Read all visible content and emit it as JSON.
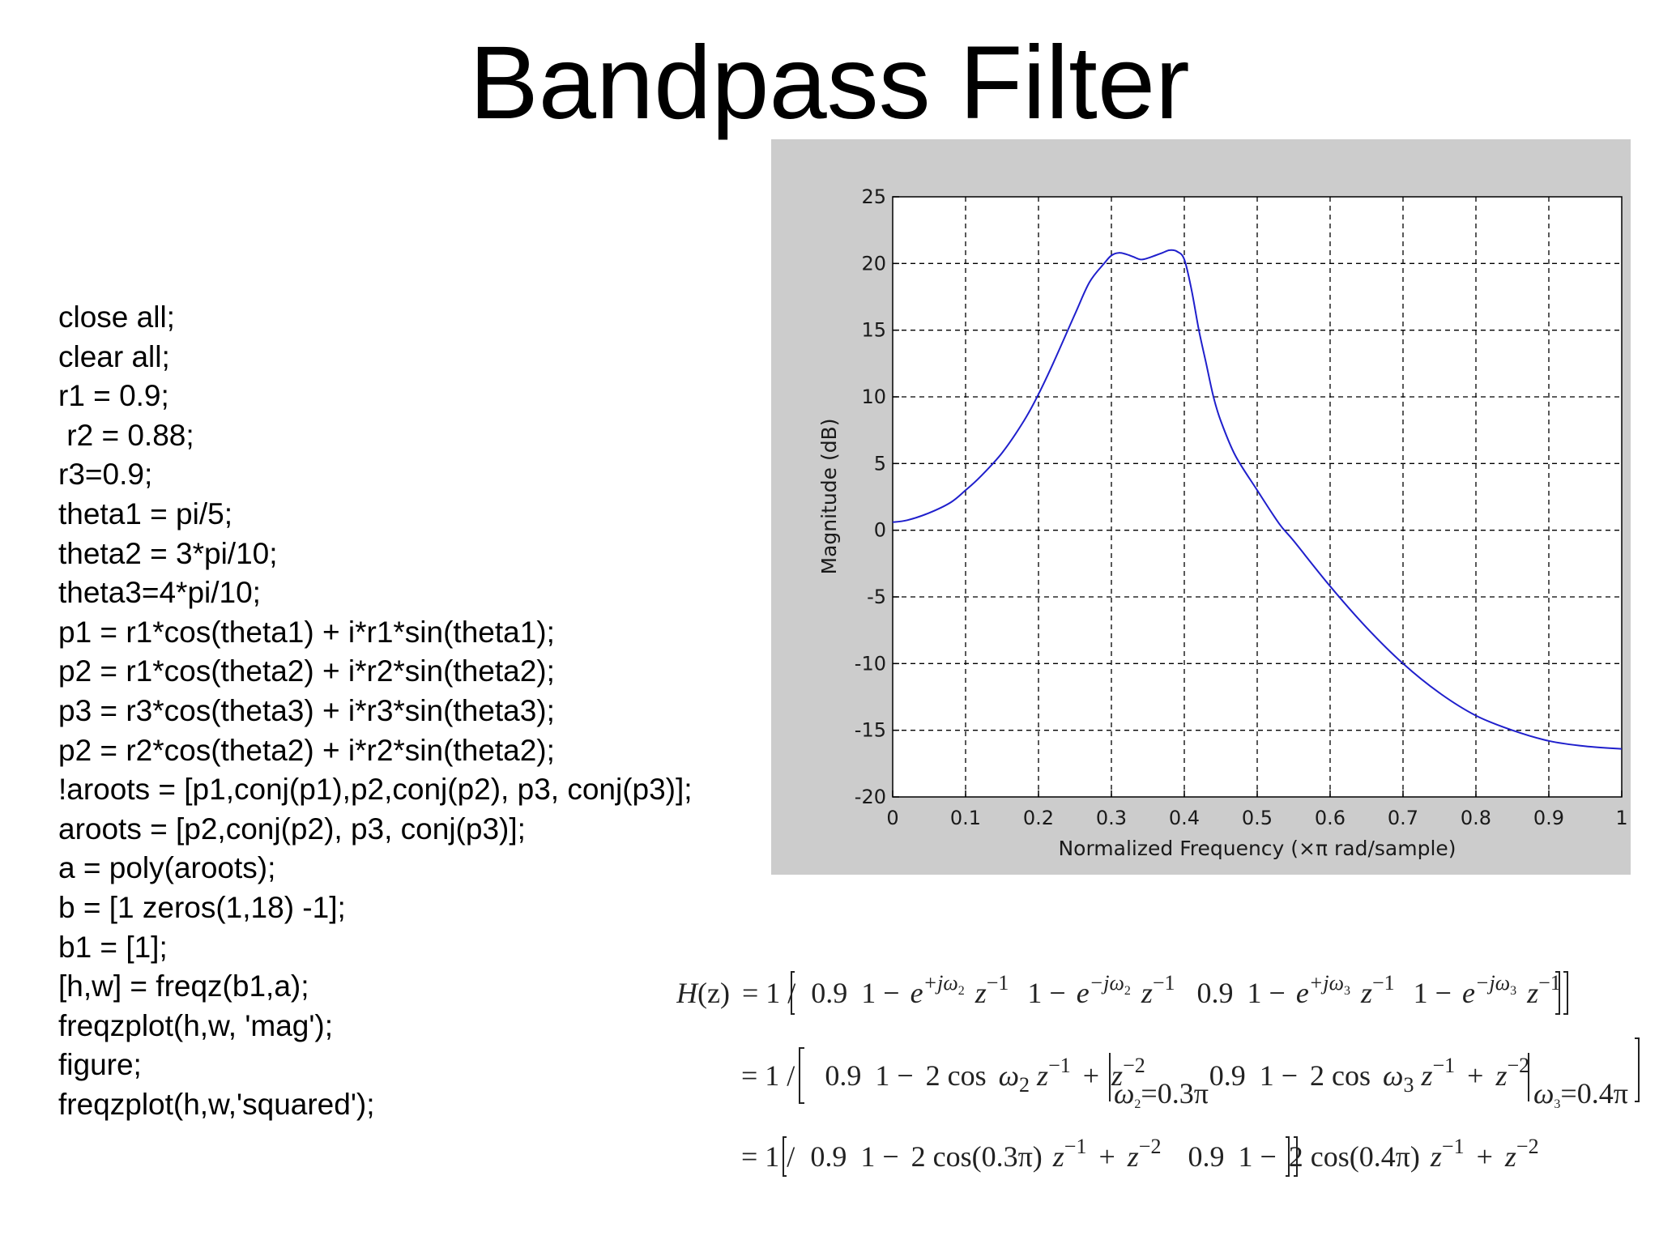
{
  "slide": {
    "title": "Bandpass Filter"
  },
  "code_lines": [
    "close all;",
    "clear all;",
    "r1 = 0.9;",
    " r2 = 0.88;",
    "r3=0.9;",
    "theta1 = pi/5;",
    "theta2 = 3*pi/10;",
    "theta3=4*pi/10;",
    "p1 = r1*cos(theta1) + i*r1*sin(theta1);",
    "p2 = r1*cos(theta2) + i*r2*sin(theta2);",
    "p3 = r3*cos(theta3) + i*r3*sin(theta3);",
    "p2 = r2*cos(theta2) + i*r2*sin(theta2);",
    "!aroots = [p1,conj(p1),p2,conj(p2), p3, conj(p3)];",
    "aroots = [p2,conj(p2), p3, conj(p3)];",
    "a = poly(aroots);",
    "b = [1 zeros(1,18) -1];",
    "b1 = [1];",
    "[h,w] = freqz(b1,a);",
    "freqzplot(h,w, 'mag');",
    "figure;",
    "freqzplot(h,w,'squared');"
  ],
  "chart_data": {
    "type": "line",
    "title": "",
    "xlabel": "Normalized Frequency  (×π rad/sample)",
    "ylabel": "Magnitude (dB)",
    "xlim": [
      0,
      1
    ],
    "ylim": [
      -20,
      25
    ],
    "xticks": [
      0,
      0.1,
      0.2,
      0.3,
      0.4,
      0.5,
      0.6,
      0.7,
      0.8,
      0.9,
      1
    ],
    "xtick_labels": [
      "0",
      "0.1",
      "0.2",
      "0.3",
      "0.4",
      "0.5",
      "0.6",
      "0.7",
      "0.8",
      "0.9",
      "1"
    ],
    "yticks": [
      -20,
      -15,
      -10,
      -5,
      0,
      5,
      10,
      15,
      20,
      25
    ],
    "ytick_labels": [
      "-20",
      "-15",
      "-10",
      "-5",
      "0",
      "5",
      "10",
      "15",
      "20",
      "25"
    ],
    "grid": true,
    "line_color": "#1f1fcc",
    "panel_color": "#cccccc",
    "series": [
      {
        "x": [
          0,
          0.02,
          0.05,
          0.08,
          0.1,
          0.12,
          0.15,
          0.18,
          0.2,
          0.22,
          0.25,
          0.27,
          0.29,
          0.3,
          0.31,
          0.32,
          0.33,
          0.34,
          0.35,
          0.36,
          0.37,
          0.38,
          0.39,
          0.4,
          0.41,
          0.42,
          0.43,
          0.44,
          0.45,
          0.47,
          0.5,
          0.53,
          0.55,
          0.6,
          0.65,
          0.7,
          0.75,
          0.8,
          0.85,
          0.9,
          0.95,
          1.0
        ],
        "y": [
          0.6,
          0.75,
          1.3,
          2.1,
          3.0,
          4.0,
          5.8,
          8.2,
          10.2,
          12.5,
          16.2,
          18.6,
          20.0,
          20.6,
          20.8,
          20.7,
          20.5,
          20.3,
          20.4,
          20.6,
          20.8,
          21.0,
          20.9,
          20.3,
          18.0,
          15.0,
          12.5,
          10.0,
          8.2,
          5.6,
          3.0,
          0.5,
          -0.8,
          -4.2,
          -7.3,
          -10.0,
          -12.2,
          -13.9,
          -15.0,
          -15.8,
          -16.2,
          -16.4
        ]
      }
    ]
  },
  "equations": {
    "line1_lhs": "H",
    "line1_arg": "(z)",
    "eq_one_over": "= 1 /",
    "coef": "0.9",
    "one_minus": "1 −",
    "e": "e",
    "exp_plus_w2": "+jω",
    "exp_minus_w2": "−jω",
    "sub2": "2",
    "sub3": "3",
    "z": "z",
    "zinv": "−1",
    "zinv2": "−2",
    "two_cos": "2 cos",
    "omega": "ω",
    "plus": "+",
    "eval_w2": "=0.3π",
    "eval_w3": "=0.4π",
    "cos03": "2 cos(0.3π)",
    "cos04": "2 cos(0.4π)"
  }
}
